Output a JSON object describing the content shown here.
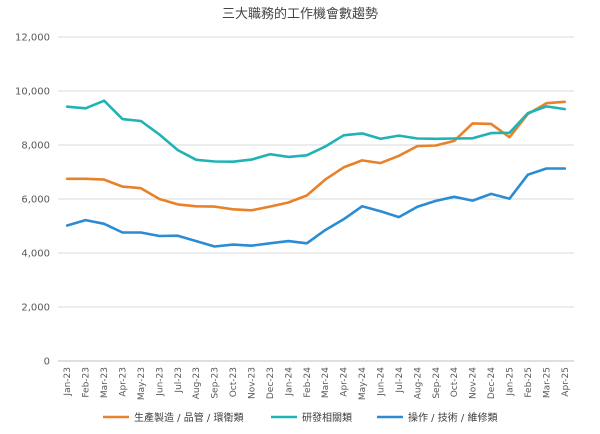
{
  "chart_data": {
    "type": "line",
    "title": "三大職務的工作機會數趨勢",
    "xlabel": "",
    "ylabel": "",
    "ylim": [
      0,
      12000
    ],
    "yticks": [
      0,
      2000,
      4000,
      6000,
      8000,
      10000,
      12000
    ],
    "ytick_labels": [
      "0",
      "2,000",
      "4,000",
      "6,000",
      "8,000",
      "10,000",
      "12,000"
    ],
    "grid": "horizontal",
    "legend_position": "bottom",
    "categories": [
      "Jan-23",
      "Feb-23",
      "Mar-23",
      "Apr-23",
      "May-23",
      "Jun-23",
      "Jul-23",
      "Aug-23",
      "Sep-23",
      "Oct-23",
      "Nov-23",
      "Dec-23",
      "Jan-24",
      "Feb-24",
      "Mar-24",
      "Apr-24",
      "May-24",
      "Jun-24",
      "Jul-24",
      "Aug-24",
      "Sep-24",
      "Oct-24",
      "Nov-24",
      "Dec-24",
      "Jan-25",
      "Feb-25",
      "Mar-25",
      "Apr-25"
    ],
    "series": [
      {
        "name": "生產製造 / 品管 / 環衛類",
        "color": "#e8822a",
        "values": [
          6750,
          6750,
          6720,
          6460,
          6400,
          6000,
          5800,
          5730,
          5720,
          5620,
          5580,
          5720,
          5870,
          6130,
          6720,
          7170,
          7430,
          7330,
          7600,
          7960,
          7980,
          8150,
          8800,
          8780,
          8290,
          9150,
          9550,
          9600
        ]
      },
      {
        "name": "研發相關類",
        "color": "#1fb3b6",
        "values": [
          9420,
          9360,
          9640,
          8960,
          8890,
          8390,
          7810,
          7450,
          7390,
          7380,
          7460,
          7660,
          7560,
          7620,
          7940,
          8360,
          8430,
          8230,
          8350,
          8240,
          8230,
          8240,
          8250,
          8440,
          8450,
          9180,
          9430,
          9330
        ]
      },
      {
        "name": "操作 / 技術 / 維修類",
        "color": "#2b8cd4",
        "values": [
          5020,
          5220,
          5080,
          4760,
          4760,
          4630,
          4640,
          4440,
          4240,
          4310,
          4270,
          4360,
          4440,
          4360,
          4850,
          5250,
          5730,
          5550,
          5330,
          5710,
          5930,
          6080,
          5940,
          6190,
          6010,
          6900,
          7130,
          7130
        ]
      }
    ]
  }
}
